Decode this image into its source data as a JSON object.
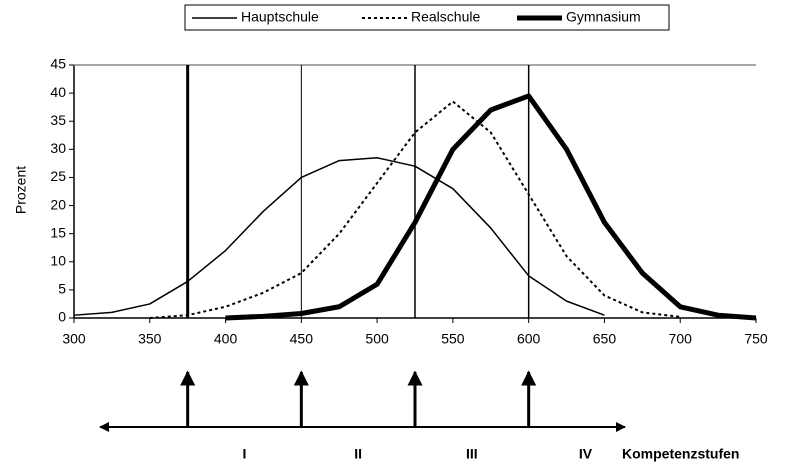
{
  "chart_data": {
    "type": "line",
    "ylabel": "Prozent",
    "xlim": [
      300,
      750
    ],
    "xticks": [
      300,
      350,
      400,
      450,
      500,
      550,
      600,
      650,
      700,
      750
    ],
    "ylim": [
      0,
      45
    ],
    "yticks": [
      0,
      5,
      10,
      15,
      20,
      25,
      30,
      35,
      40,
      45
    ],
    "legend": "top",
    "series": [
      {
        "name": "Hauptschule",
        "color": "#000000",
        "linestyle": "solid",
        "linewidth": 1.5,
        "x": [
          300,
          325,
          350,
          375,
          400,
          425,
          450,
          475,
          500,
          525,
          550,
          575,
          600,
          625,
          650
        ],
        "y": [
          0.5,
          1,
          2.5,
          6.5,
          12,
          19,
          25,
          28,
          28.5,
          27,
          23,
          16,
          7.5,
          3,
          0.5
        ]
      },
      {
        "name": "Realschule",
        "color": "#000000",
        "linestyle": "dotted",
        "linewidth": 2,
        "x": [
          350,
          375,
          400,
          425,
          450,
          475,
          500,
          525,
          550,
          575,
          600,
          625,
          650,
          675,
          700
        ],
        "y": [
          0,
          0.5,
          2,
          4.5,
          8,
          15,
          24,
          33,
          38.5,
          33,
          22,
          11,
          4,
          1,
          0.2
        ]
      },
      {
        "name": "Gymnasium",
        "color": "#000000",
        "linestyle": "solid",
        "linewidth": 5,
        "x": [
          400,
          425,
          450,
          475,
          500,
          525,
          550,
          575,
          600,
          625,
          650,
          675,
          700,
          725,
          750
        ],
        "y": [
          0,
          0.3,
          0.8,
          2,
          6,
          17,
          30,
          37,
          39.5,
          30,
          17,
          8,
          2,
          0.5,
          0
        ]
      }
    ],
    "thresholds": [
      375,
      450,
      525,
      600
    ],
    "levels": [
      "I",
      "II",
      "III",
      "IV"
    ],
    "levels_title": "Kompetenzstufen"
  }
}
